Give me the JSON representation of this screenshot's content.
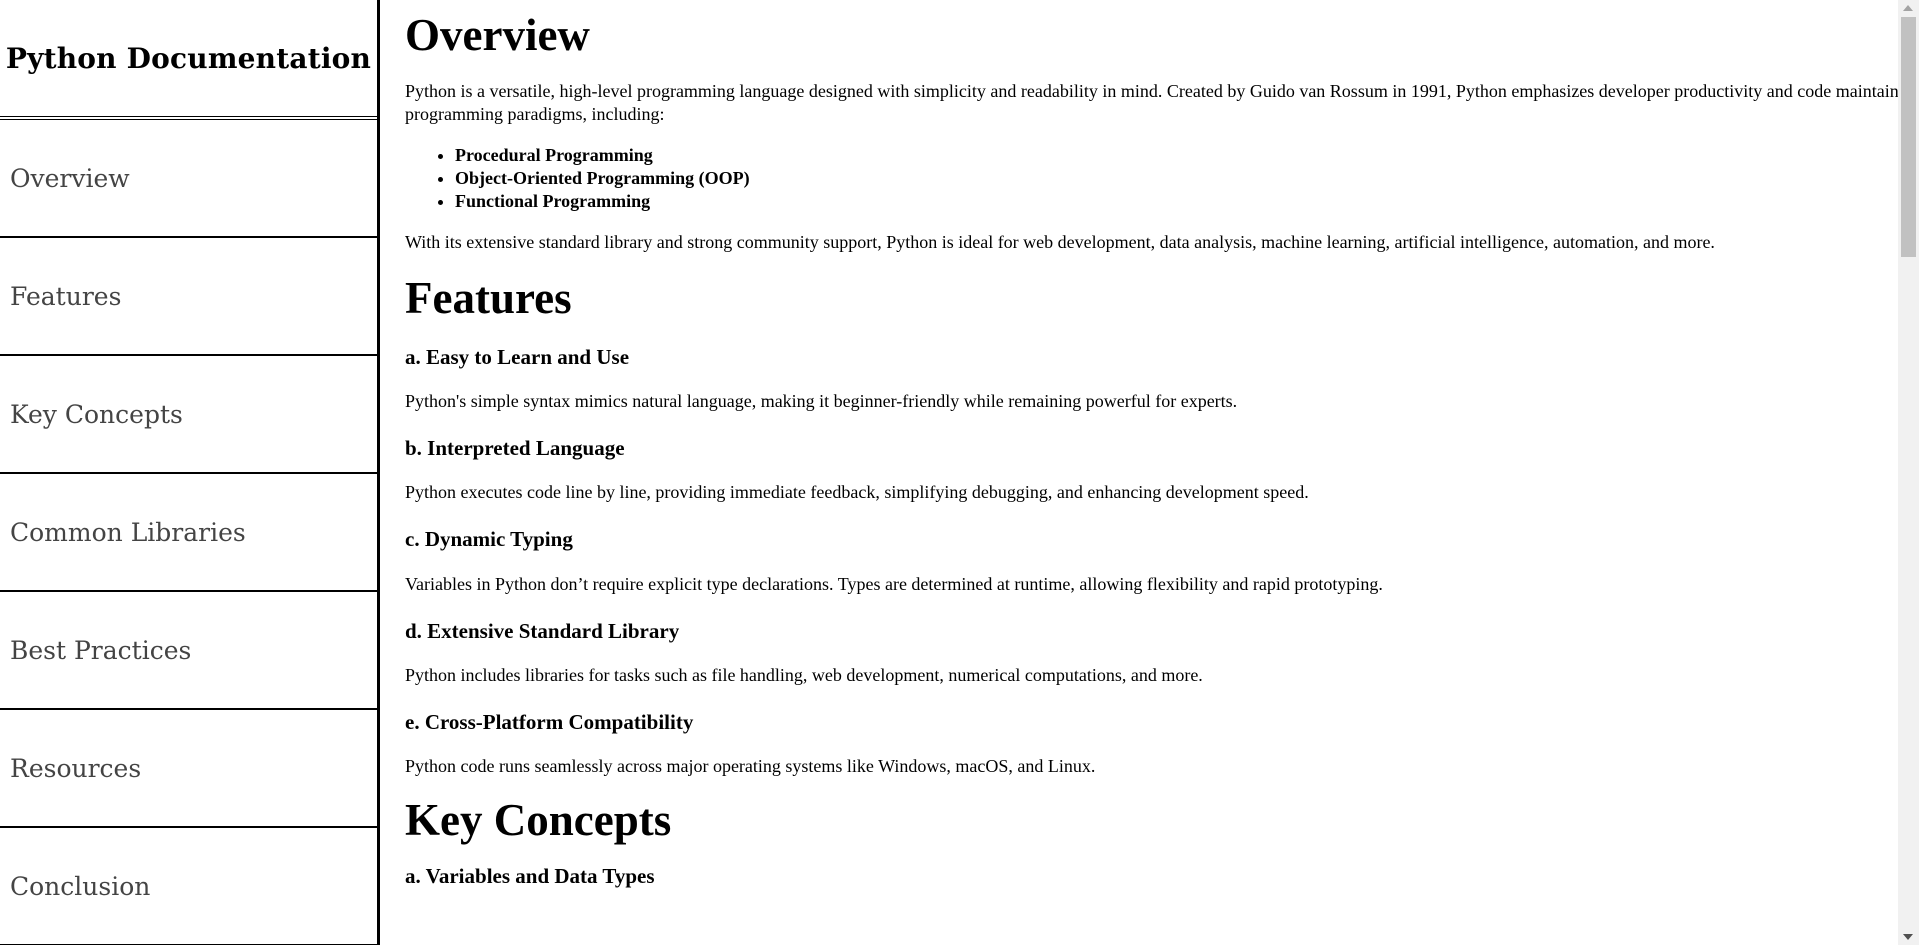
{
  "sidebar": {
    "title": "Python Documentation",
    "items": [
      {
        "label": "Overview"
      },
      {
        "label": "Features"
      },
      {
        "label": "Key Concepts"
      },
      {
        "label": "Common Libraries"
      },
      {
        "label": "Best Practices"
      },
      {
        "label": "Resources"
      },
      {
        "label": "Conclusion"
      }
    ]
  },
  "main": {
    "overview": {
      "heading": "Overview",
      "intro": "Python is a versatile, high-level programming language designed with simplicity and readability in mind. Created by Guido van Rossum in 1991, Python emphasizes developer productivity and code maintainability. It supports multiple programming paradigms, including:",
      "paradigms": [
        "Procedural Programming",
        "Object-Oriented Programming (OOP)",
        "Functional Programming"
      ],
      "outro": "With its extensive standard library and strong community support, Python is ideal for web development, data analysis, machine learning, artificial intelligence, automation, and more."
    },
    "features": {
      "heading": "Features",
      "items": [
        {
          "title": "a. Easy to Learn and Use",
          "text": "Python's simple syntax mimics natural language, making it beginner-friendly while remaining powerful for experts."
        },
        {
          "title": "b. Interpreted Language",
          "text": "Python executes code line by line, providing immediate feedback, simplifying debugging, and enhancing development speed."
        },
        {
          "title": "c. Dynamic Typing",
          "text": "Variables in Python don’t require explicit type declarations. Types are determined at runtime, allowing flexibility and rapid prototyping."
        },
        {
          "title": "d. Extensive Standard Library",
          "text": "Python includes libraries for tasks such as file handling, web development, numerical computations, and more."
        },
        {
          "title": "e. Cross-Platform Compatibility",
          "text": "Python code runs seamlessly across major operating systems like Windows, macOS, and Linux."
        }
      ]
    },
    "key_concepts": {
      "heading": "Key Concepts",
      "first_subheading": "a. Variables and Data Types"
    }
  }
}
